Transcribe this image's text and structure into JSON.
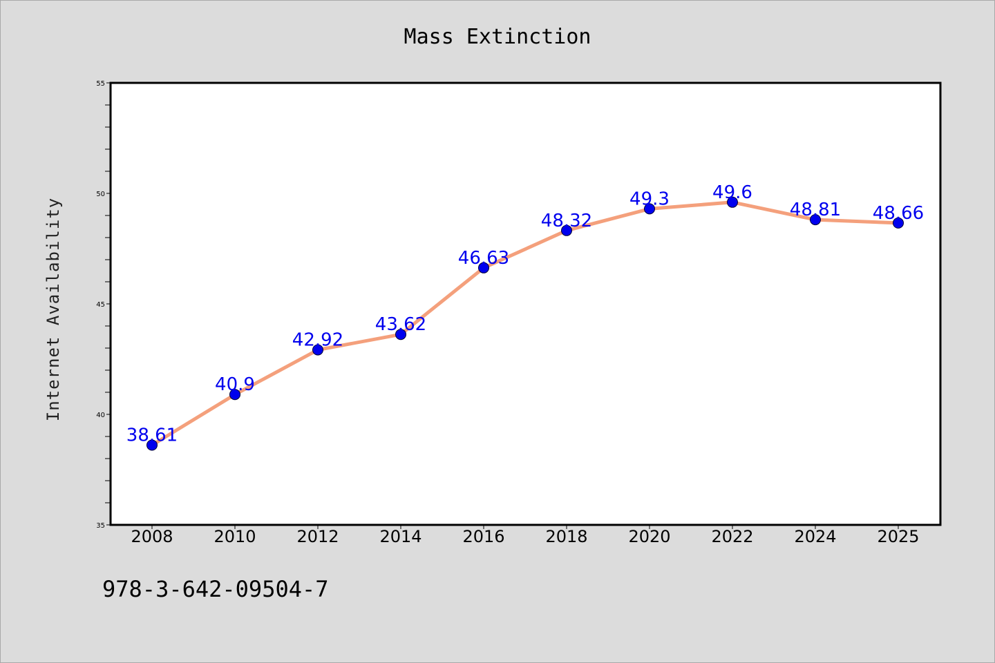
{
  "chart_data": {
    "type": "line",
    "title": "Mass Extinction",
    "xlabel": "",
    "ylabel": "Internet Availability",
    "categories": [
      "2008",
      "2010",
      "2012",
      "2014",
      "2016",
      "2018",
      "2020",
      "2022",
      "2024",
      "2025"
    ],
    "values": [
      38.61,
      40.9,
      42.92,
      43.62,
      46.63,
      48.32,
      49.3,
      49.6,
      48.81,
      48.66
    ],
    "data_labels": [
      "38.61",
      "40.9",
      "42.92",
      "43.62",
      "46.63",
      "48.32",
      "49.3",
      "49.6",
      "48.81",
      "48.66"
    ],
    "ylim": [
      35,
      55
    ],
    "yticks": [
      "35",
      "40",
      "45",
      "50",
      "55"
    ],
    "grid": false,
    "legend": "none",
    "colors": {
      "line": "#f4a07c",
      "marker": "#0000ee",
      "marker_edge": "#000033",
      "label": "#0000ee",
      "background": "#dcdcdc",
      "plot_bg": "#ffffff"
    }
  },
  "footnote": "978-3-642-09504-7"
}
